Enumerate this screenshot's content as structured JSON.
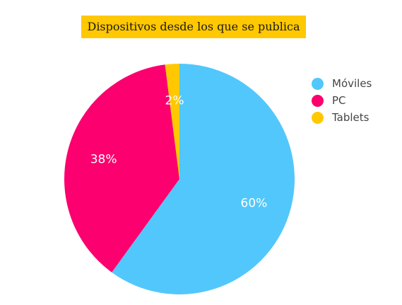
{
  "chart_data": {
    "type": "pie",
    "title": "Dispositivos desde los que se publica",
    "categories": [
      "Móviles",
      "PC",
      "Tablets"
    ],
    "values": [
      60,
      38,
      2
    ],
    "value_labels": [
      "60%",
      "38%",
      "2%"
    ],
    "colors": [
      "#52c7fb",
      "#fb006e",
      "#ffc800"
    ],
    "title_background": "#ffc800",
    "label_color": "#ffffff",
    "legend_position": "right",
    "start": "top-clockwise"
  }
}
